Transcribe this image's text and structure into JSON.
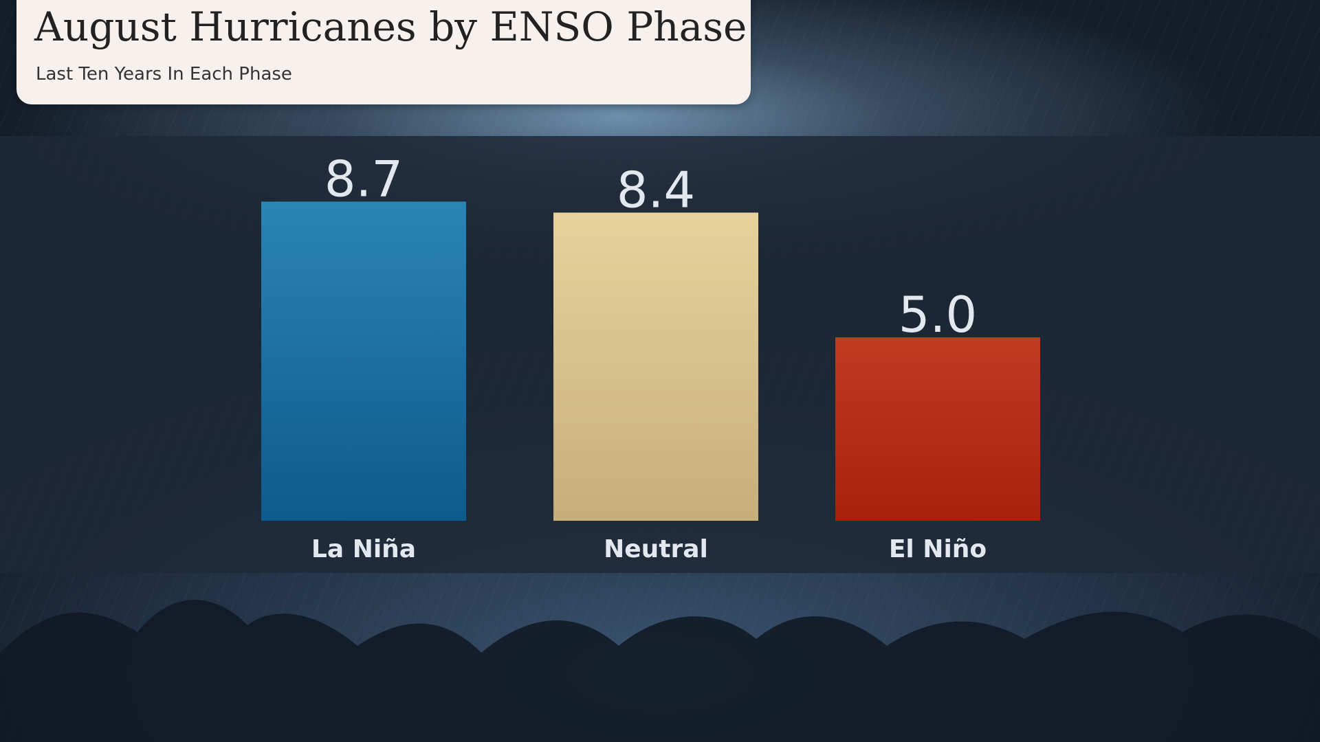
{
  "title": "August Hurricanes by ENSO Phase",
  "subtitle": "Last Ten Years In Each Phase",
  "colors": {
    "la_nina": "#1f74a8",
    "neutral": "#d9c28e",
    "el_nino": "#b5301a",
    "label_text": "#e3e8ee"
  },
  "chart_data": {
    "type": "bar",
    "title": "August Hurricanes by ENSO Phase",
    "subtitle": "Last Ten Years In Each Phase",
    "categories": [
      "La Niña",
      "Neutral",
      "El Niño"
    ],
    "values": [
      8.7,
      8.4,
      5.0
    ],
    "value_labels": [
      "8.7",
      "8.4",
      "5.0"
    ],
    "colors": [
      "#1f74a8",
      "#d9c28e",
      "#b5301a"
    ],
    "xlabel": "",
    "ylabel": "",
    "grid": false,
    "legend": "none"
  }
}
